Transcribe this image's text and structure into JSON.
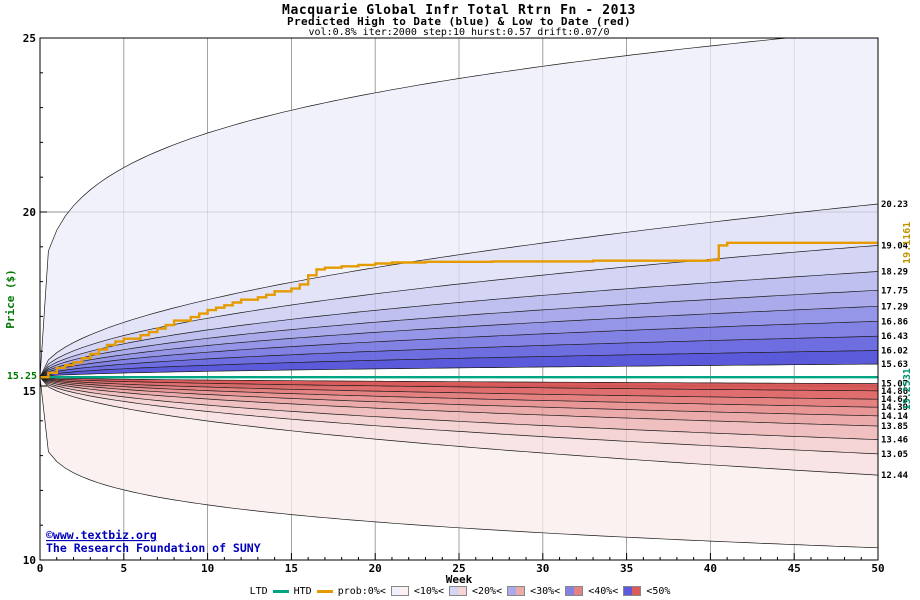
{
  "header": {
    "title": "Macquarie Global Infr Total Rtrn Fn - 2013",
    "subtitle": "Predicted High to Date (blue) &  Low to Date (red)",
    "params": "vol:0.8% iter:2000 step:10 hurst:0.57 drift:0.07/0"
  },
  "axes": {
    "x_label": "Week",
    "y_label": "Price ($)",
    "x_ticks": [
      0,
      5,
      10,
      15,
      20,
      25,
      30,
      35,
      40,
      45,
      50
    ],
    "y_ticks": [
      10,
      15,
      20,
      25
    ],
    "x_range": [
      0,
      50
    ],
    "y_range": [
      10,
      25
    ],
    "start_price_label": "15.25"
  },
  "footer": {
    "copyright1": "©www.textbiz.org",
    "copyright2": "The Research Foundation of SUNY"
  },
  "legend": {
    "ltd_label": "LTD",
    "htd_label": "HTD",
    "prob_labels": [
      "prob:0%<",
      "<10%<",
      "<20%<",
      "<30%<",
      "<40%<",
      "<50%"
    ],
    "swatches": [
      {
        "high": "#f1f1fb",
        "low": "#fbf1f1"
      },
      {
        "high": "#d4d4f4",
        "low": "#f4d4d4"
      },
      {
        "high": "#ababec",
        "low": "#ecabab"
      },
      {
        "high": "#8282e4",
        "low": "#e48282"
      },
      {
        "high": "#5a5adb",
        "low": "#db5a5a"
      }
    ]
  },
  "chart_data": {
    "type": "area",
    "title": "Macquarie Global Infr Total Rtrn Fn - 2013",
    "xlabel": "Week",
    "ylabel": "Price ($)",
    "xlim": [
      0,
      50
    ],
    "ylim": [
      10,
      25
    ],
    "start_week": 0,
    "start_price": 15.2531,
    "high_percentile_ends": [
      15.63,
      16.02,
      16.43,
      16.86,
      17.29,
      17.75,
      18.29,
      19.04,
      20.23
    ],
    "high_envelope_end": 25.25,
    "low_percentile_ends": [
      15.07,
      14.86,
      14.62,
      14.39,
      14.14,
      13.85,
      13.46,
      13.05,
      12.44
    ],
    "low_envelope_end": 10.35,
    "percentile_exponent": 0.5,
    "envelope_exponent_high": 0.22,
    "envelope_exponent_low": 0.18,
    "band_colors_high": [
      "#5a5adb",
      "#6e6ee0",
      "#8282e4",
      "#9696e8",
      "#ababec",
      "#c0c0f0",
      "#d4d4f4",
      "#e4e4f8",
      "#f1f1fb"
    ],
    "band_colors_low": [
      "#db5a5a",
      "#e06e6e",
      "#e48282",
      "#e89696",
      "#ecabab",
      "#f0c0c0",
      "#f4d4d4",
      "#f8e4e4",
      "#fbf1f1"
    ],
    "htd_steps": [
      [
        0,
        15.2531
      ],
      [
        0.5,
        15.38
      ],
      [
        1,
        15.52
      ],
      [
        1.5,
        15.6
      ],
      [
        2,
        15.68
      ],
      [
        2.5,
        15.8
      ],
      [
        3,
        15.92
      ],
      [
        3.5,
        16.05
      ],
      [
        4,
        16.18
      ],
      [
        4.5,
        16.28
      ],
      [
        5,
        16.36
      ],
      [
        6,
        16.46
      ],
      [
        6.5,
        16.55
      ],
      [
        7,
        16.65
      ],
      [
        7.5,
        16.75
      ],
      [
        8,
        16.88
      ],
      [
        9,
        16.98
      ],
      [
        9.5,
        17.08
      ],
      [
        10,
        17.18
      ],
      [
        10.5,
        17.25
      ],
      [
        11,
        17.32
      ],
      [
        11.5,
        17.4
      ],
      [
        12,
        17.48
      ],
      [
        13,
        17.55
      ],
      [
        13.5,
        17.62
      ],
      [
        14,
        17.72
      ],
      [
        15,
        17.8
      ],
      [
        15.5,
        17.92
      ],
      [
        16,
        18.18
      ],
      [
        16.5,
        18.35
      ],
      [
        17,
        18.4
      ],
      [
        18,
        18.44
      ],
      [
        19,
        18.48
      ],
      [
        20,
        18.52
      ],
      [
        21,
        18.55
      ],
      [
        23,
        18.57
      ],
      [
        27,
        18.58
      ],
      [
        33,
        18.6
      ],
      [
        40,
        18.62
      ],
      [
        40.5,
        19.04
      ],
      [
        41,
        19.1161
      ]
    ],
    "htd_final": 19.1161,
    "htd_final_label": "19.1161",
    "ltd_value": 15.2531,
    "ltd_final_label": "15.2531",
    "right_axis_labels": [
      20.23,
      19.04,
      18.29,
      17.75,
      17.29,
      16.86,
      16.43,
      16.02,
      15.63,
      15.07,
      14.86,
      14.62,
      14.39,
      14.14,
      13.85,
      13.46,
      13.05,
      12.44
    ],
    "colors": {
      "htd": "#e59a00",
      "ltd": "#00a583",
      "grid": "#9a9a9a",
      "boundary": "#1a1a1a",
      "link_blue": "#0000bb",
      "axis_green": "#007700",
      "htd_label": "#bf9400",
      "ltd_label_color": "#00936e"
    },
    "legend_position": "bottom",
    "grid": true
  }
}
